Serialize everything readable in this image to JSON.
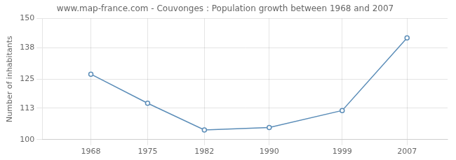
{
  "chart_data": {
    "type": "line",
    "title": "www.map-france.com - Couvonges : Population growth between 1968 and 2007",
    "ylabel": "Number of inhabitants",
    "x": [
      1968,
      1975,
      1982,
      1990,
      1999,
      2007
    ],
    "values": [
      127,
      115,
      104,
      105,
      112,
      142
    ],
    "color": "#5b8db8",
    "marker": "circle",
    "xlim": [
      1962,
      2012
    ],
    "xticks": [
      1968,
      1975,
      1982,
      1990,
      1999,
      2007
    ],
    "ylim": [
      100,
      150
    ],
    "yticks": [
      100,
      113,
      125,
      138,
      150
    ],
    "grid": true
  }
}
